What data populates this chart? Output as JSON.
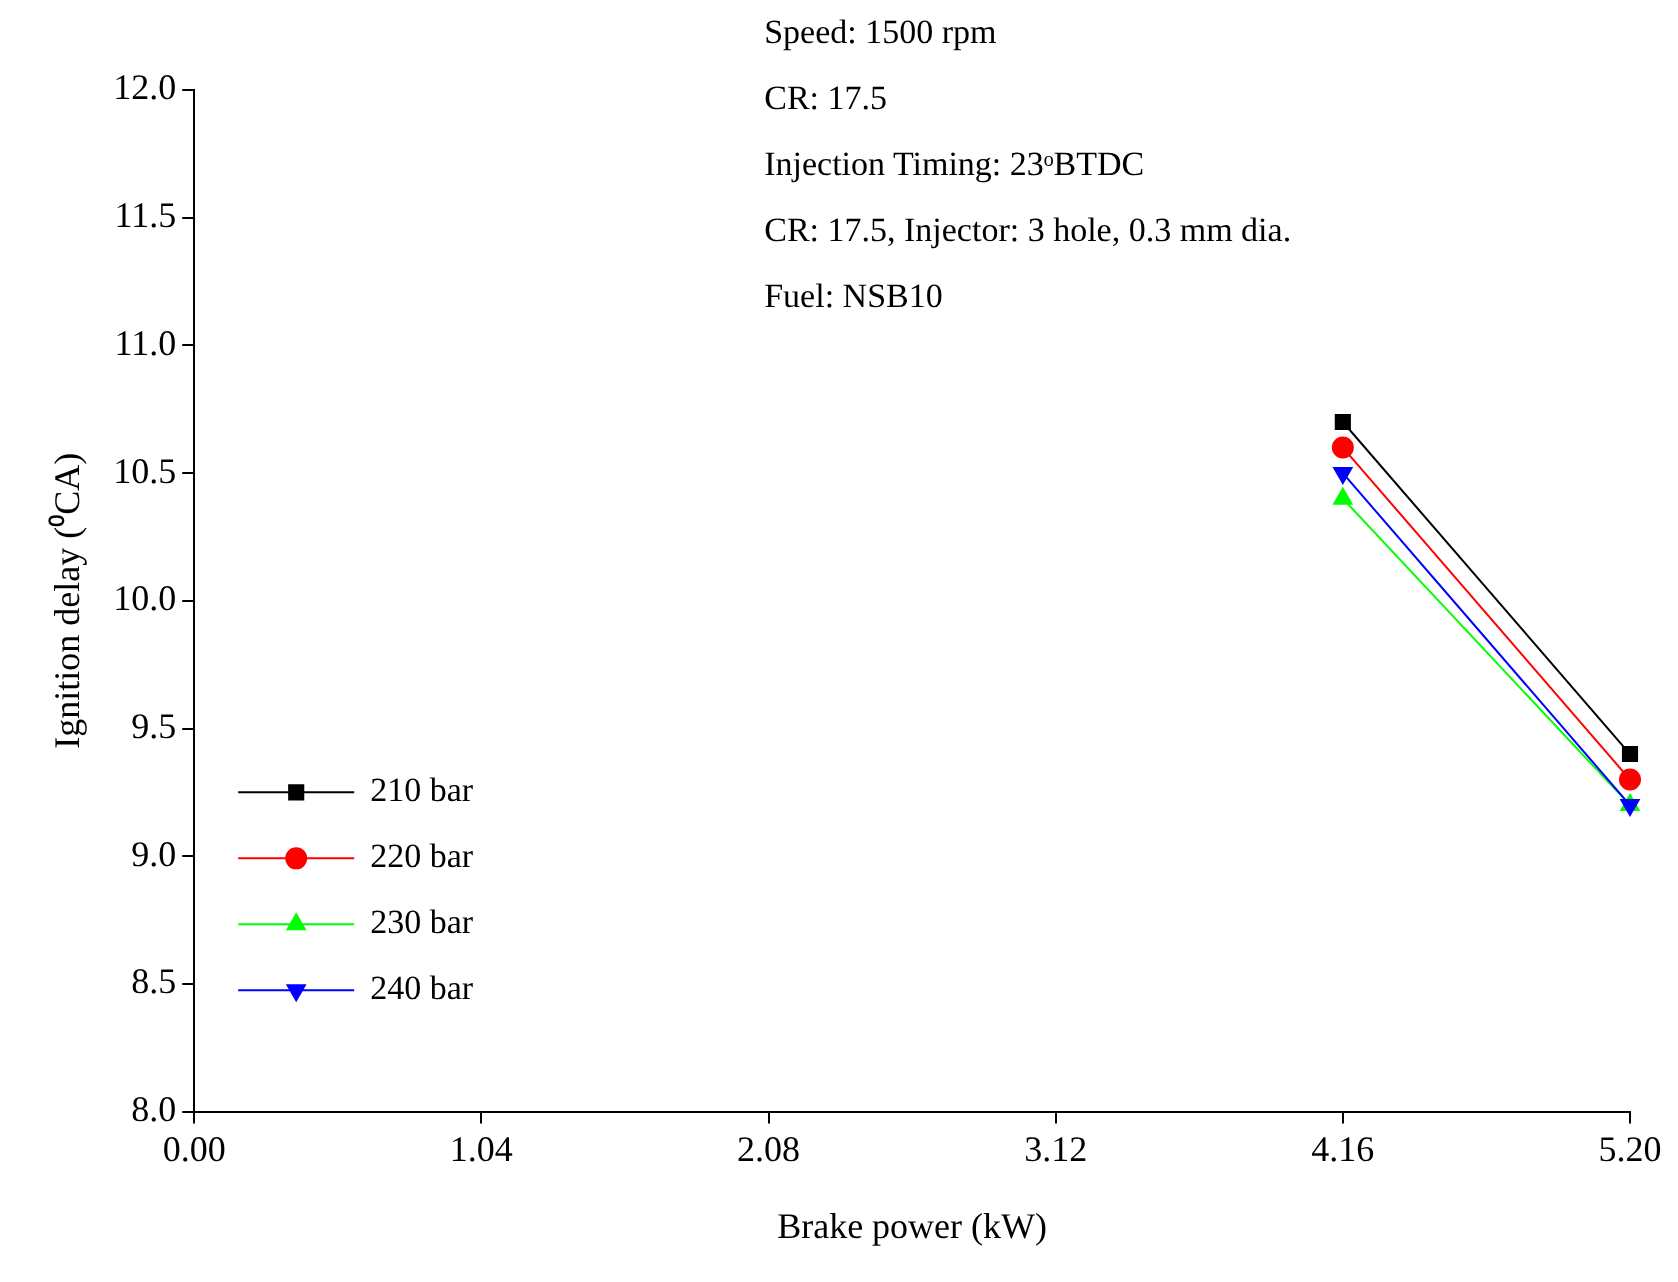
{
  "chart_data": {
    "type": "line",
    "xlabel": "Brake power (kW)",
    "ylabel": "Ignition delay (⁰CA)",
    "annotations": [
      "Speed: 1500 rpm",
      "CR: 17.5",
      "Injection Timing: 23ᵒBTDC",
      "CR: 17.5, Injector: 3 hole, 0.3 mm dia.",
      "Fuel: NSB10"
    ],
    "x": [
      4.16,
      5.2
    ],
    "series": [
      {
        "name": "210 bar",
        "color": "#000000",
        "marker": "square",
        "values": [
          10.7,
          9.4
        ]
      },
      {
        "name": "220 bar",
        "color": "#ff0000",
        "marker": "circle",
        "values": [
          10.6,
          9.3
        ]
      },
      {
        "name": "230 bar",
        "color": "#00ff00",
        "marker": "triangle",
        "values": [
          10.4,
          9.2
        ]
      },
      {
        "name": "240 bar",
        "color": "#0000ff",
        "marker": "triangle-down",
        "values": [
          10.5,
          9.2
        ]
      }
    ],
    "xlim": [
      0,
      5.2
    ],
    "xticks": [
      {
        "value": 0,
        "label": "0.00"
      },
      {
        "value": 1.04,
        "label": "1.04"
      },
      {
        "value": 2.08,
        "label": "2.08"
      },
      {
        "value": 3.12,
        "label": "3.12"
      },
      {
        "value": 4.16,
        "label": "4.16"
      },
      {
        "value": 5.2,
        "label": "5.20"
      }
    ],
    "ylim": [
      8,
      12
    ],
    "yticks": [
      {
        "value": 8,
        "label": "8.0"
      },
      {
        "value": 8.5,
        "label": "8.5"
      },
      {
        "value": 9,
        "label": "9.0"
      },
      {
        "value": 9.5,
        "label": "9.5"
      },
      {
        "value": 10,
        "label": "10.0"
      },
      {
        "value": 10.5,
        "label": "10.5"
      },
      {
        "value": 11,
        "label": "11.0"
      },
      {
        "value": 11.5,
        "label": "11.5"
      },
      {
        "value": 12,
        "label": "12.0"
      }
    ],
    "grid": false,
    "legend": "left",
    "line_style": "solid"
  }
}
